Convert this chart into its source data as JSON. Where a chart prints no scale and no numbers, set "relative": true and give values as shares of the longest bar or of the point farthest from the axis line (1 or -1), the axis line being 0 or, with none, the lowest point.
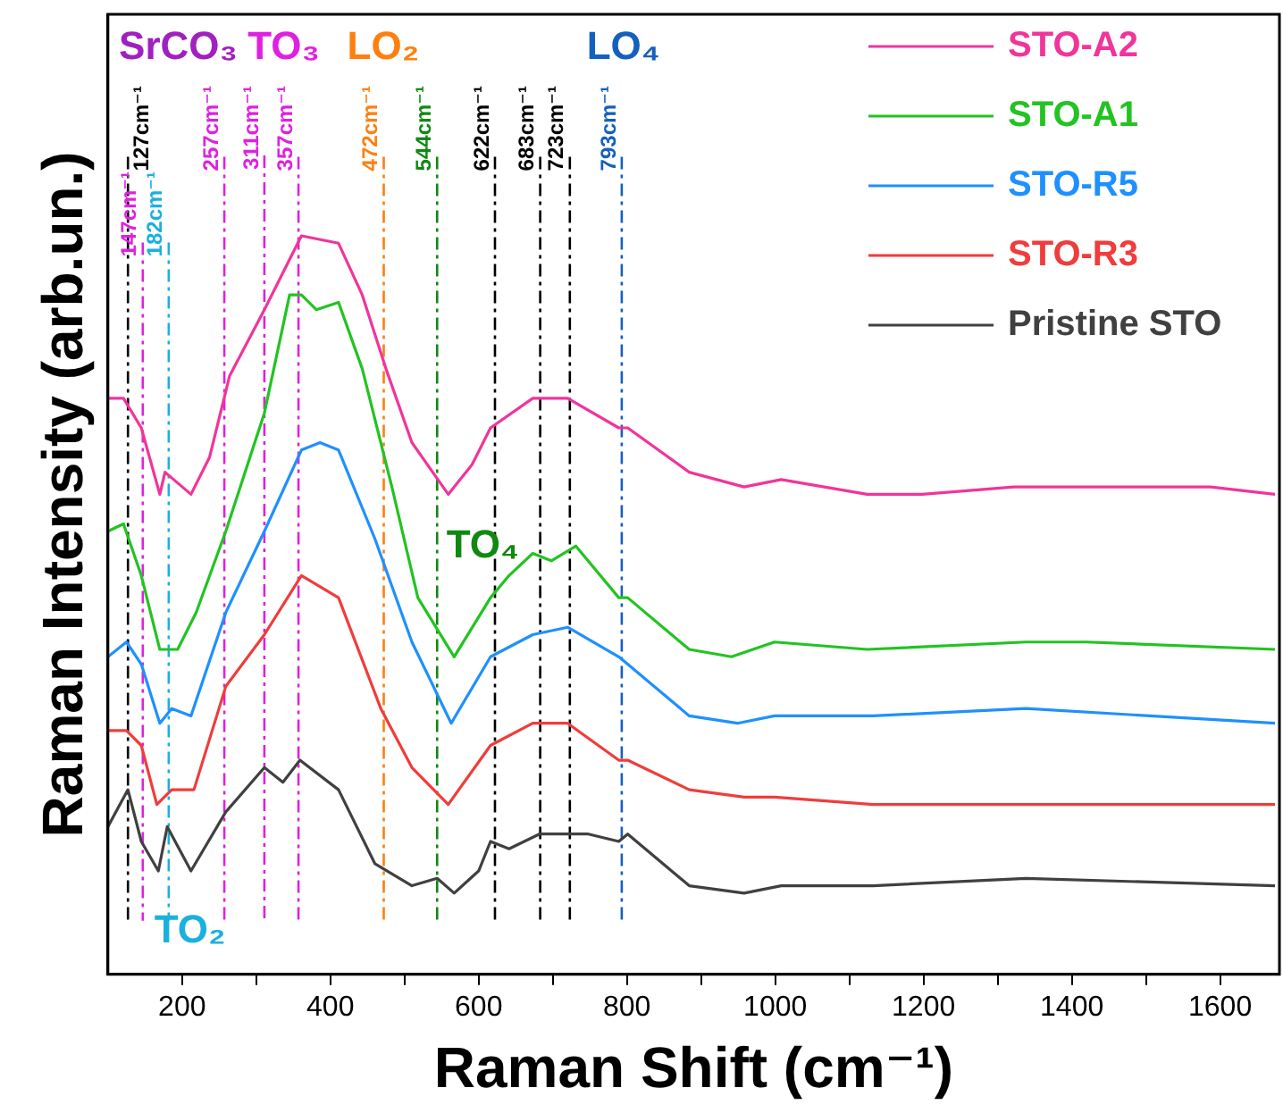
{
  "chart_data": {
    "type": "line",
    "relative": true,
    "xlabel": "Raman Shift (cm⁻¹)",
    "ylabel": "Raman Intensity (arb.un.)",
    "xlim": [
      100,
      1680
    ],
    "xticks": [
      200,
      {
        "value": 300,
        "label": null
      },
      400,
      {
        "value": 500,
        "label": null
      },
      600,
      {
        "value": 700,
        "label": null
      },
      800,
      {
        "value": 900,
        "label": null
      },
      1000,
      {
        "value": 1100,
        "label": null
      },
      1200,
      {
        "value": 1300,
        "label": null
      },
      1400,
      {
        "value": 1500,
        "label": null
      },
      1600
    ],
    "grid": false,
    "legend": "top right",
    "marker": "none",
    "line_style": "solid",
    "series": [
      {
        "name": "STO-A2",
        "color": "#f0359a",
        "x": [
          100,
          121,
          145,
          170,
          177,
          212,
          237,
          264,
          311,
          361,
          411,
          443,
          475,
          510,
          559,
          591,
          616,
          673,
          720,
          789,
          801,
          884,
          958,
          1008,
          1124,
          1198,
          1322,
          1587,
          1674
        ],
        "values": [
          0.78,
          0.78,
          0.74,
          0.65,
          0.68,
          0.65,
          0.7,
          0.81,
          0.9,
          1.0,
          0.99,
          0.92,
          0.82,
          0.72,
          0.65,
          0.69,
          0.74,
          0.78,
          0.78,
          0.74,
          0.74,
          0.68,
          0.66,
          0.67,
          0.65,
          0.65,
          0.66,
          0.66,
          0.65
        ]
      },
      {
        "name": "STO-A1",
        "color": "#22c322",
        "x": [
          100,
          121,
          145,
          170,
          194,
          219,
          259,
          311,
          345,
          361,
          381,
          411,
          443,
          483,
          518,
          567,
          616,
          641,
          673,
          698,
          731,
          789,
          801,
          884,
          941,
          999,
          1124,
          1338,
          1420,
          1674
        ],
        "values": [
          0.6,
          0.61,
          0.54,
          0.44,
          0.44,
          0.49,
          0.6,
          0.76,
          0.92,
          0.92,
          0.9,
          0.91,
          0.82,
          0.66,
          0.51,
          0.43,
          0.51,
          0.54,
          0.57,
          0.56,
          0.58,
          0.51,
          0.51,
          0.44,
          0.43,
          0.45,
          0.44,
          0.45,
          0.45,
          0.44
        ]
      },
      {
        "name": "STO-R5",
        "color": "#1e90ff",
        "x": [
          100,
          125,
          145,
          170,
          186,
          212,
          259,
          311,
          361,
          386,
          411,
          460,
          510,
          563,
          616,
          673,
          720,
          789,
          801,
          884,
          949,
          999,
          1132,
          1338,
          1674
        ],
        "values": [
          0.43,
          0.45,
          0.42,
          0.34,
          0.36,
          0.35,
          0.49,
          0.6,
          0.71,
          0.72,
          0.71,
          0.59,
          0.45,
          0.34,
          0.43,
          0.46,
          0.47,
          0.43,
          0.42,
          0.35,
          0.34,
          0.35,
          0.35,
          0.36,
          0.34
        ]
      },
      {
        "name": "STO-R3",
        "color": "#f03c3c",
        "x": [
          100,
          125,
          145,
          166,
          186,
          216,
          259,
          311,
          361,
          411,
          468,
          510,
          559,
          616,
          673,
          720,
          789,
          801,
          884,
          958,
          999,
          1132,
          1674
        ],
        "values": [
          0.33,
          0.33,
          0.31,
          0.23,
          0.25,
          0.25,
          0.39,
          0.46,
          0.54,
          0.51,
          0.36,
          0.28,
          0.23,
          0.31,
          0.34,
          0.34,
          0.29,
          0.29,
          0.25,
          0.24,
          0.24,
          0.23,
          0.23
        ]
      },
      {
        "name": "Pristine STO",
        "color": "#404040",
        "x": [
          100,
          127,
          145,
          168,
          180,
          212,
          259,
          311,
          336,
          359,
          411,
          460,
          510,
          544,
          567,
          600,
          616,
          641,
          682,
          748,
          789,
          801,
          884,
          958,
          1008,
          1132,
          1338,
          1674
        ],
        "values": [
          0.2,
          0.25,
          0.18,
          0.14,
          0.2,
          0.14,
          0.22,
          0.28,
          0.26,
          0.29,
          0.25,
          0.15,
          0.12,
          0.13,
          0.11,
          0.14,
          0.18,
          0.17,
          0.19,
          0.19,
          0.18,
          0.19,
          0.12,
          0.11,
          0.12,
          0.12,
          0.13,
          0.12
        ]
      }
    ],
    "ref_lines": [
      {
        "axis": "x",
        "value": 127,
        "label": "127cm⁻¹",
        "color": "#000000",
        "line_style": "dashdot"
      },
      {
        "axis": "x",
        "value": 147,
        "label": "147cm⁻¹",
        "color": "#e020e0",
        "line_style": "dashdot"
      },
      {
        "axis": "x",
        "value": 182,
        "label": "182cm⁻¹",
        "color": "#1ab0e0",
        "line_style": "dashdot"
      },
      {
        "axis": "x",
        "value": 257,
        "label": "257cm⁻¹",
        "color": "#e020e0",
        "line_style": "dashdot"
      },
      {
        "axis": "x",
        "value": 311,
        "label": "311cm⁻¹",
        "color": "#e020e0",
        "line_style": "dashdot"
      },
      {
        "axis": "x",
        "value": 357,
        "label": "357cm⁻¹",
        "color": "#e020e0",
        "line_style": "dashdot"
      },
      {
        "axis": "x",
        "value": 472,
        "label": "472cm⁻¹",
        "color": "#ff7f0e",
        "line_style": "dashdot"
      },
      {
        "axis": "x",
        "value": 544,
        "label": "544cm⁻¹",
        "color": "#118811",
        "line_style": "dashdot"
      },
      {
        "axis": "x",
        "value": 622,
        "label": "622cm⁻¹",
        "color": "#000000",
        "line_style": "dashdot"
      },
      {
        "axis": "x",
        "value": 683,
        "label": "683cm⁻¹",
        "color": "#000000",
        "line_style": "dashdot"
      },
      {
        "axis": "x",
        "value": 723,
        "label": "723cm⁻¹",
        "color": "#000000",
        "line_style": "dashdot"
      },
      {
        "axis": "x",
        "value": 793,
        "label": "793cm⁻¹",
        "color": "#1560bd",
        "line_style": "dashdot"
      }
    ],
    "annotations": [
      "SrCO₃",
      "TO₃",
      "LO₂",
      "TO₄",
      "LO₄",
      "TO₂"
    ]
  }
}
